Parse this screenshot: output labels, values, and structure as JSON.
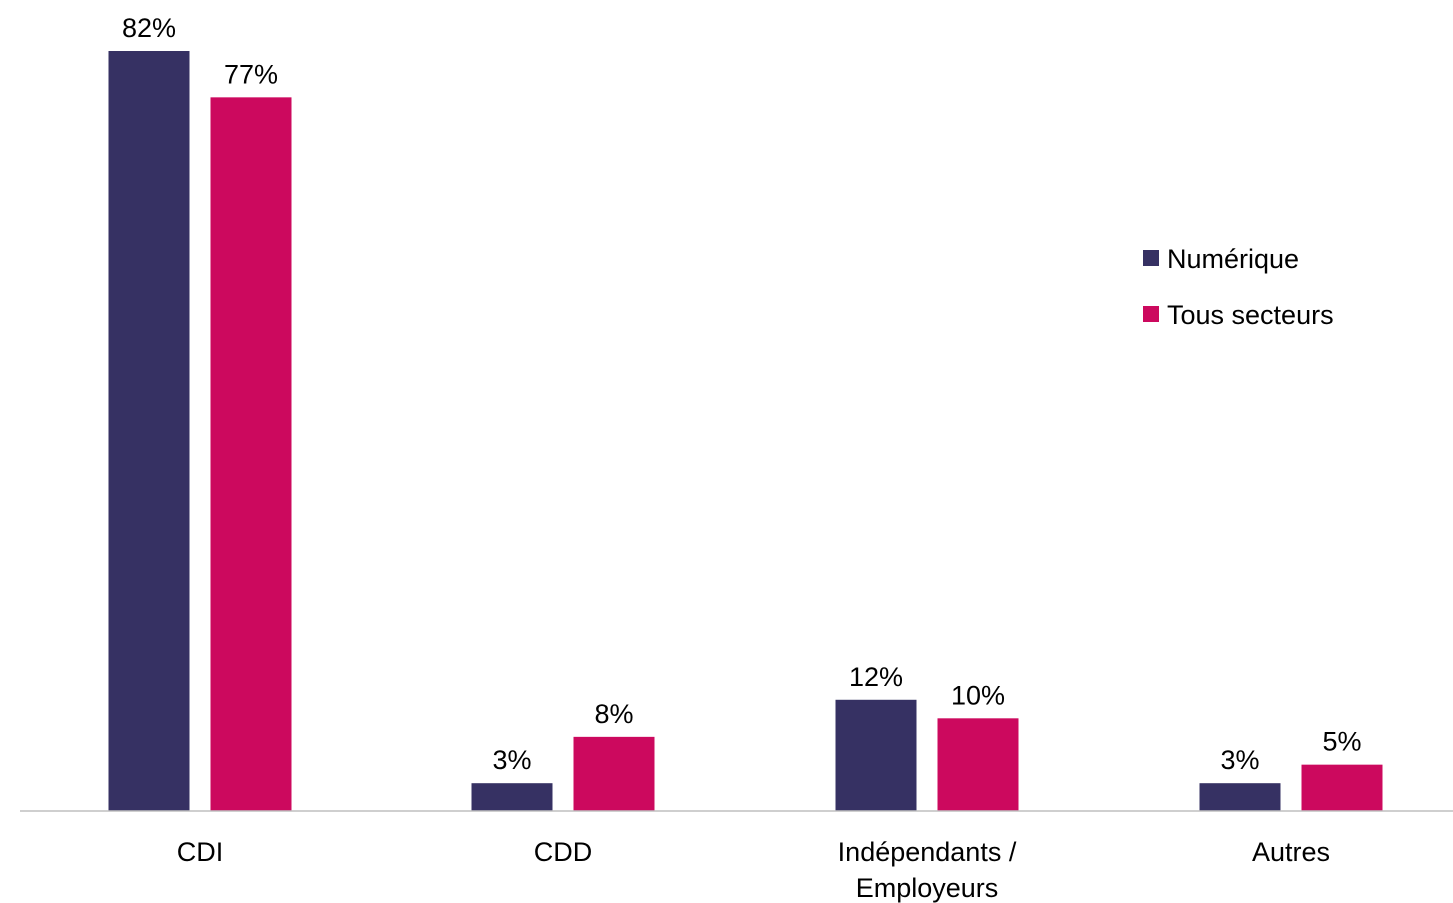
{
  "chart_data": {
    "type": "bar",
    "categories": [
      [
        "CDI"
      ],
      [
        "CDD"
      ],
      [
        "Indépendants /",
        "Employeurs"
      ],
      [
        "Autres"
      ]
    ],
    "series": [
      {
        "name": "Numérique",
        "color": "#363163",
        "values": [
          82,
          3,
          12,
          3
        ],
        "labels": [
          "82%",
          "3%",
          "12%",
          "3%"
        ]
      },
      {
        "name": "Tous secteurs",
        "color": "#CC095E",
        "values": [
          77,
          8,
          10,
          5
        ],
        "labels": [
          "77%",
          "8%",
          "10%",
          "5%"
        ]
      }
    ],
    "ylim": [
      0,
      82
    ],
    "grid": false,
    "legend_position": "right",
    "axis_color": "#BFBFBF"
  }
}
